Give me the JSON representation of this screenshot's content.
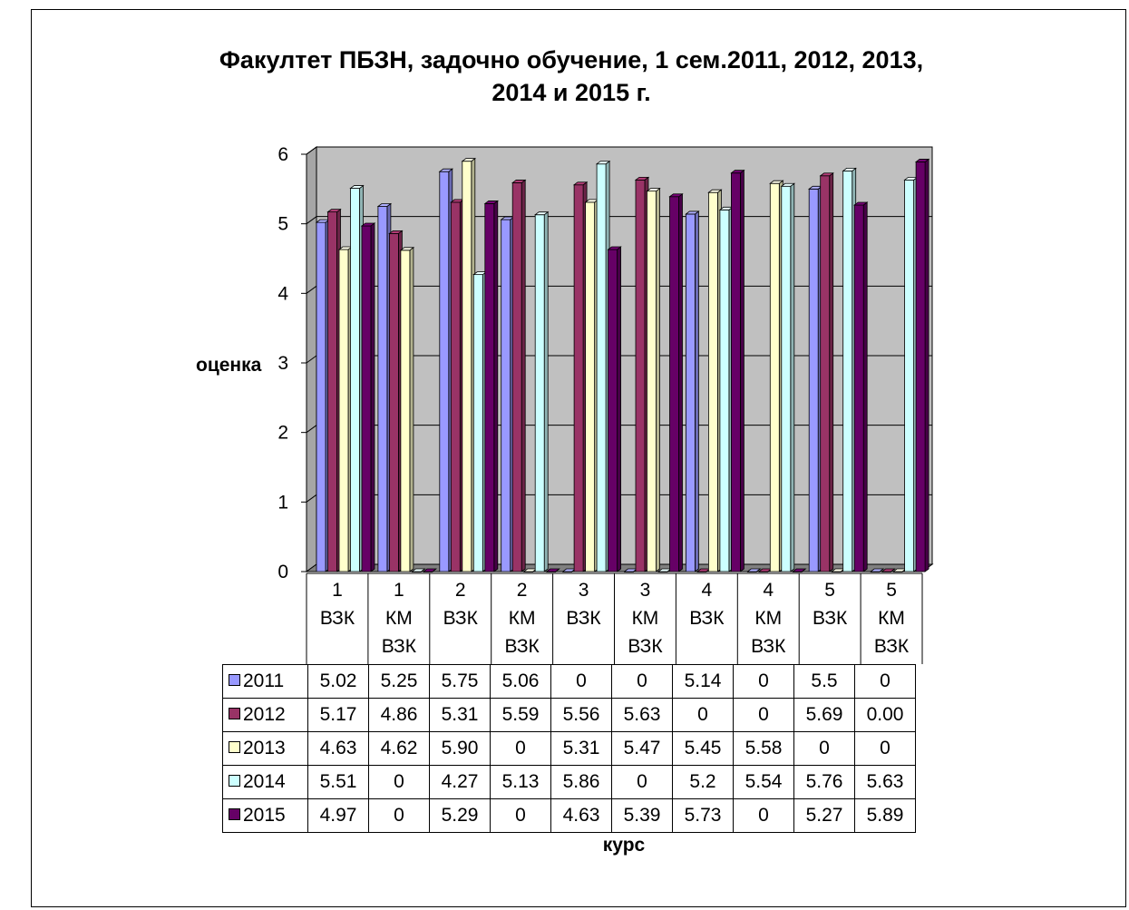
{
  "chart_data": {
    "type": "bar",
    "title": "Факултет ПБЗН, задочно обучение, 1 сем.2011, 2012, 2013, 2014 и 2015 г.",
    "title_lines": [
      "Факултет ПБЗН, задочно обучение, 1 сем.2011, 2012, 2013,",
      "2014 и 2015 г."
    ],
    "xlabel": "курс",
    "ylabel": "оценка",
    "ylim": [
      0,
      6
    ],
    "yticks": [
      "0",
      "1",
      "2",
      "3",
      "4",
      "5",
      "6"
    ],
    "grid": true,
    "categories": [
      [
        "1",
        "ВЗК"
      ],
      [
        "1",
        "КМ",
        "ВЗК"
      ],
      [
        "2",
        "ВЗК"
      ],
      [
        "2",
        "КМ",
        "ВЗК"
      ],
      [
        "3",
        "ВЗК"
      ],
      [
        "3",
        "КМ",
        "ВЗК"
      ],
      [
        "4",
        "ВЗК"
      ],
      [
        "4",
        "КМ",
        "ВЗК"
      ],
      [
        "5",
        "ВЗК"
      ],
      [
        "5",
        "КМ",
        "ВЗК"
      ]
    ],
    "series": [
      {
        "name": "2011",
        "color": "#9999ff",
        "values": [
          5.02,
          5.25,
          5.75,
          5.06,
          0,
          0,
          5.14,
          0,
          5.5,
          0
        ],
        "labels": [
          "5.02",
          "5.25",
          "5.75",
          "5.06",
          "0",
          "0",
          "5.14",
          "0",
          "5.5",
          "0"
        ]
      },
      {
        "name": "2012",
        "color": "#993366",
        "values": [
          5.17,
          4.86,
          5.31,
          5.59,
          5.56,
          5.63,
          0,
          0,
          5.69,
          0
        ],
        "labels": [
          "5.17",
          "4.86",
          "5.31",
          "5.59",
          "5.56",
          "5.63",
          "0",
          "0",
          "5.69",
          "0.00"
        ]
      },
      {
        "name": "2013",
        "color": "#ffffcc",
        "values": [
          4.63,
          4.62,
          5.9,
          0,
          5.31,
          5.47,
          5.45,
          5.58,
          0,
          0
        ],
        "labels": [
          "4.63",
          "4.62",
          "5.90",
          "0",
          "5.31",
          "5.47",
          "5.45",
          "5.58",
          "0",
          "0"
        ]
      },
      {
        "name": "2014",
        "color": "#ccffff",
        "values": [
          5.51,
          0,
          4.27,
          5.13,
          5.86,
          0,
          5.2,
          5.54,
          5.76,
          5.63
        ],
        "labels": [
          "5.51",
          "0",
          "4.27",
          "5.13",
          "5.86",
          "0",
          "5.2",
          "5.54",
          "5.76",
          "5.63"
        ]
      },
      {
        "name": "2015",
        "color": "#660066",
        "values": [
          4.97,
          0,
          5.29,
          0,
          4.63,
          5.39,
          5.73,
          0,
          5.27,
          5.89
        ],
        "labels": [
          "4.97",
          "0",
          "5.29",
          "0",
          "4.63",
          "5.39",
          "5.73",
          "0",
          "5.27",
          "5.89"
        ]
      }
    ],
    "colors": {
      "plot_area": "#c0c0c0",
      "wall_side": "#a6a6a6",
      "floor": "#808080"
    }
  }
}
